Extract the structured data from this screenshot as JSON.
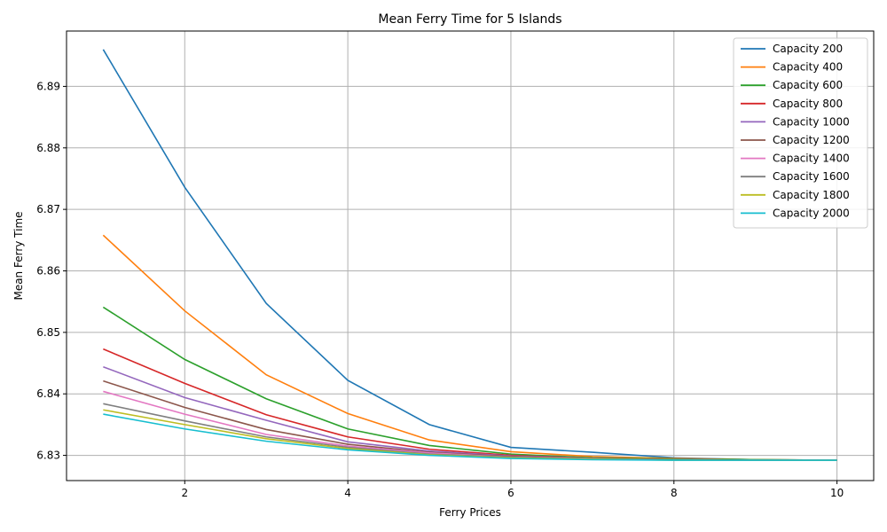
{
  "chart_data": {
    "type": "line",
    "title": "Mean Ferry Time for 5 Islands",
    "xlabel": "Ferry Prices",
    "ylabel": "Mean Ferry Time",
    "xlim": [
      0.55,
      10.45
    ],
    "ylim": [
      6.8259,
      6.899
    ],
    "xticks": [
      2,
      4,
      6,
      8,
      10
    ],
    "yticks": [
      6.83,
      6.84,
      6.85,
      6.86,
      6.87,
      6.88,
      6.89
    ],
    "ytick_labels": [
      "6.83",
      "6.84",
      "6.85",
      "6.86",
      "6.87",
      "6.88",
      "6.89"
    ],
    "grid": true,
    "legend_position": "top-right",
    "x": [
      1,
      2,
      3,
      4,
      5,
      6,
      7,
      8,
      9,
      10
    ],
    "series": [
      {
        "name": "Capacity 200",
        "color": "#1f77b4",
        "values": [
          6.896,
          6.8736,
          6.8547,
          6.8422,
          6.835,
          6.8313,
          6.8305,
          6.8296,
          6.8293,
          6.8292
        ]
      },
      {
        "name": "Capacity 400",
        "color": "#ff7f0e",
        "values": [
          6.8658,
          6.8535,
          6.8431,
          6.8368,
          6.8325,
          6.8306,
          6.8298,
          6.8295,
          6.8293,
          6.8292
        ]
      },
      {
        "name": "Capacity 600",
        "color": "#2ca02c",
        "values": [
          6.8541,
          6.8456,
          6.8392,
          6.8343,
          6.8316,
          6.8302,
          6.8296,
          6.8294,
          6.8293,
          6.8292
        ]
      },
      {
        "name": "Capacity 800",
        "color": "#d62728",
        "values": [
          6.8473,
          6.8417,
          6.8366,
          6.833,
          6.831,
          6.83,
          6.8295,
          6.8293,
          6.8292,
          6.8292
        ]
      },
      {
        "name": "Capacity 1000",
        "color": "#9467bd",
        "values": [
          6.8444,
          6.8394,
          6.8357,
          6.8322,
          6.8307,
          6.8299,
          6.8295,
          6.8293,
          6.8292,
          6.8292
        ]
      },
      {
        "name": "Capacity 1200",
        "color": "#8c564b",
        "values": [
          6.8421,
          6.8378,
          6.8342,
          6.8318,
          6.8305,
          6.8298,
          6.8294,
          6.8293,
          6.8292,
          6.8292
        ]
      },
      {
        "name": "Capacity 1400",
        "color": "#e377c2",
        "values": [
          6.8404,
          6.8367,
          6.8334,
          6.8315,
          6.8304,
          6.8297,
          6.8294,
          6.8293,
          6.8292,
          6.8292
        ]
      },
      {
        "name": "Capacity 1600",
        "color": "#7f7f7f",
        "values": [
          6.8384,
          6.8356,
          6.833,
          6.8313,
          6.8302,
          6.8297,
          6.8294,
          6.8293,
          6.8292,
          6.8292
        ]
      },
      {
        "name": "Capacity 1800",
        "color": "#bcbd22",
        "values": [
          6.8374,
          6.835,
          6.8327,
          6.8311,
          6.8301,
          6.8296,
          6.8294,
          6.8292,
          6.8292,
          6.8292
        ]
      },
      {
        "name": "Capacity 2000",
        "color": "#17becf",
        "values": [
          6.8367,
          6.8343,
          6.8323,
          6.8309,
          6.83,
          6.8295,
          6.8293,
          6.8292,
          6.8292,
          6.8292
        ]
      }
    ]
  }
}
